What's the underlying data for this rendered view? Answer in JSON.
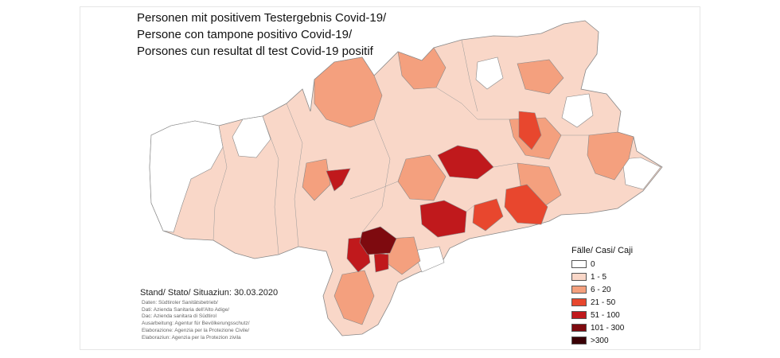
{
  "title": {
    "line1": "Personen mit  positivem Testergebnis Covid-19/",
    "line2": "Persone con tampone  positivo Covid-19/",
    "line3": "Porsones cun resultat dl test Covid-19 positif"
  },
  "legend": {
    "title": "Fälle/ Casi/ Caji",
    "classes": [
      {
        "label": "0",
        "color": "#ffffff"
      },
      {
        "label": "1 - 5",
        "color": "#f9d7c8"
      },
      {
        "label": "6 - 20",
        "color": "#f4a07e"
      },
      {
        "label": "21 - 50",
        "color": "#e8472e"
      },
      {
        "label": "51 - 100",
        "color": "#c0191c"
      },
      {
        "label": "101 - 300",
        "color": "#7e0a0f"
      },
      {
        "label": ">300",
        "color": "#3a0005"
      }
    ]
  },
  "stand": "Stand/ Stato/ Situaziun: 30.03.2020",
  "credits": [
    "Daten: Südtiroler Sanitätsbetrieb/",
    "Dati: Azienda Sanitaria dell'Alto Adige/",
    "Dac: Azienda sanitara di Südtirol",
    "Ausarbeitung: Agentur für Bevölkerungsschutz/",
    "Elaborazione: Agenzia per la Protezione Civile/",
    "Elaboraziun: Agenzia per la Protezion zivila"
  ]
}
